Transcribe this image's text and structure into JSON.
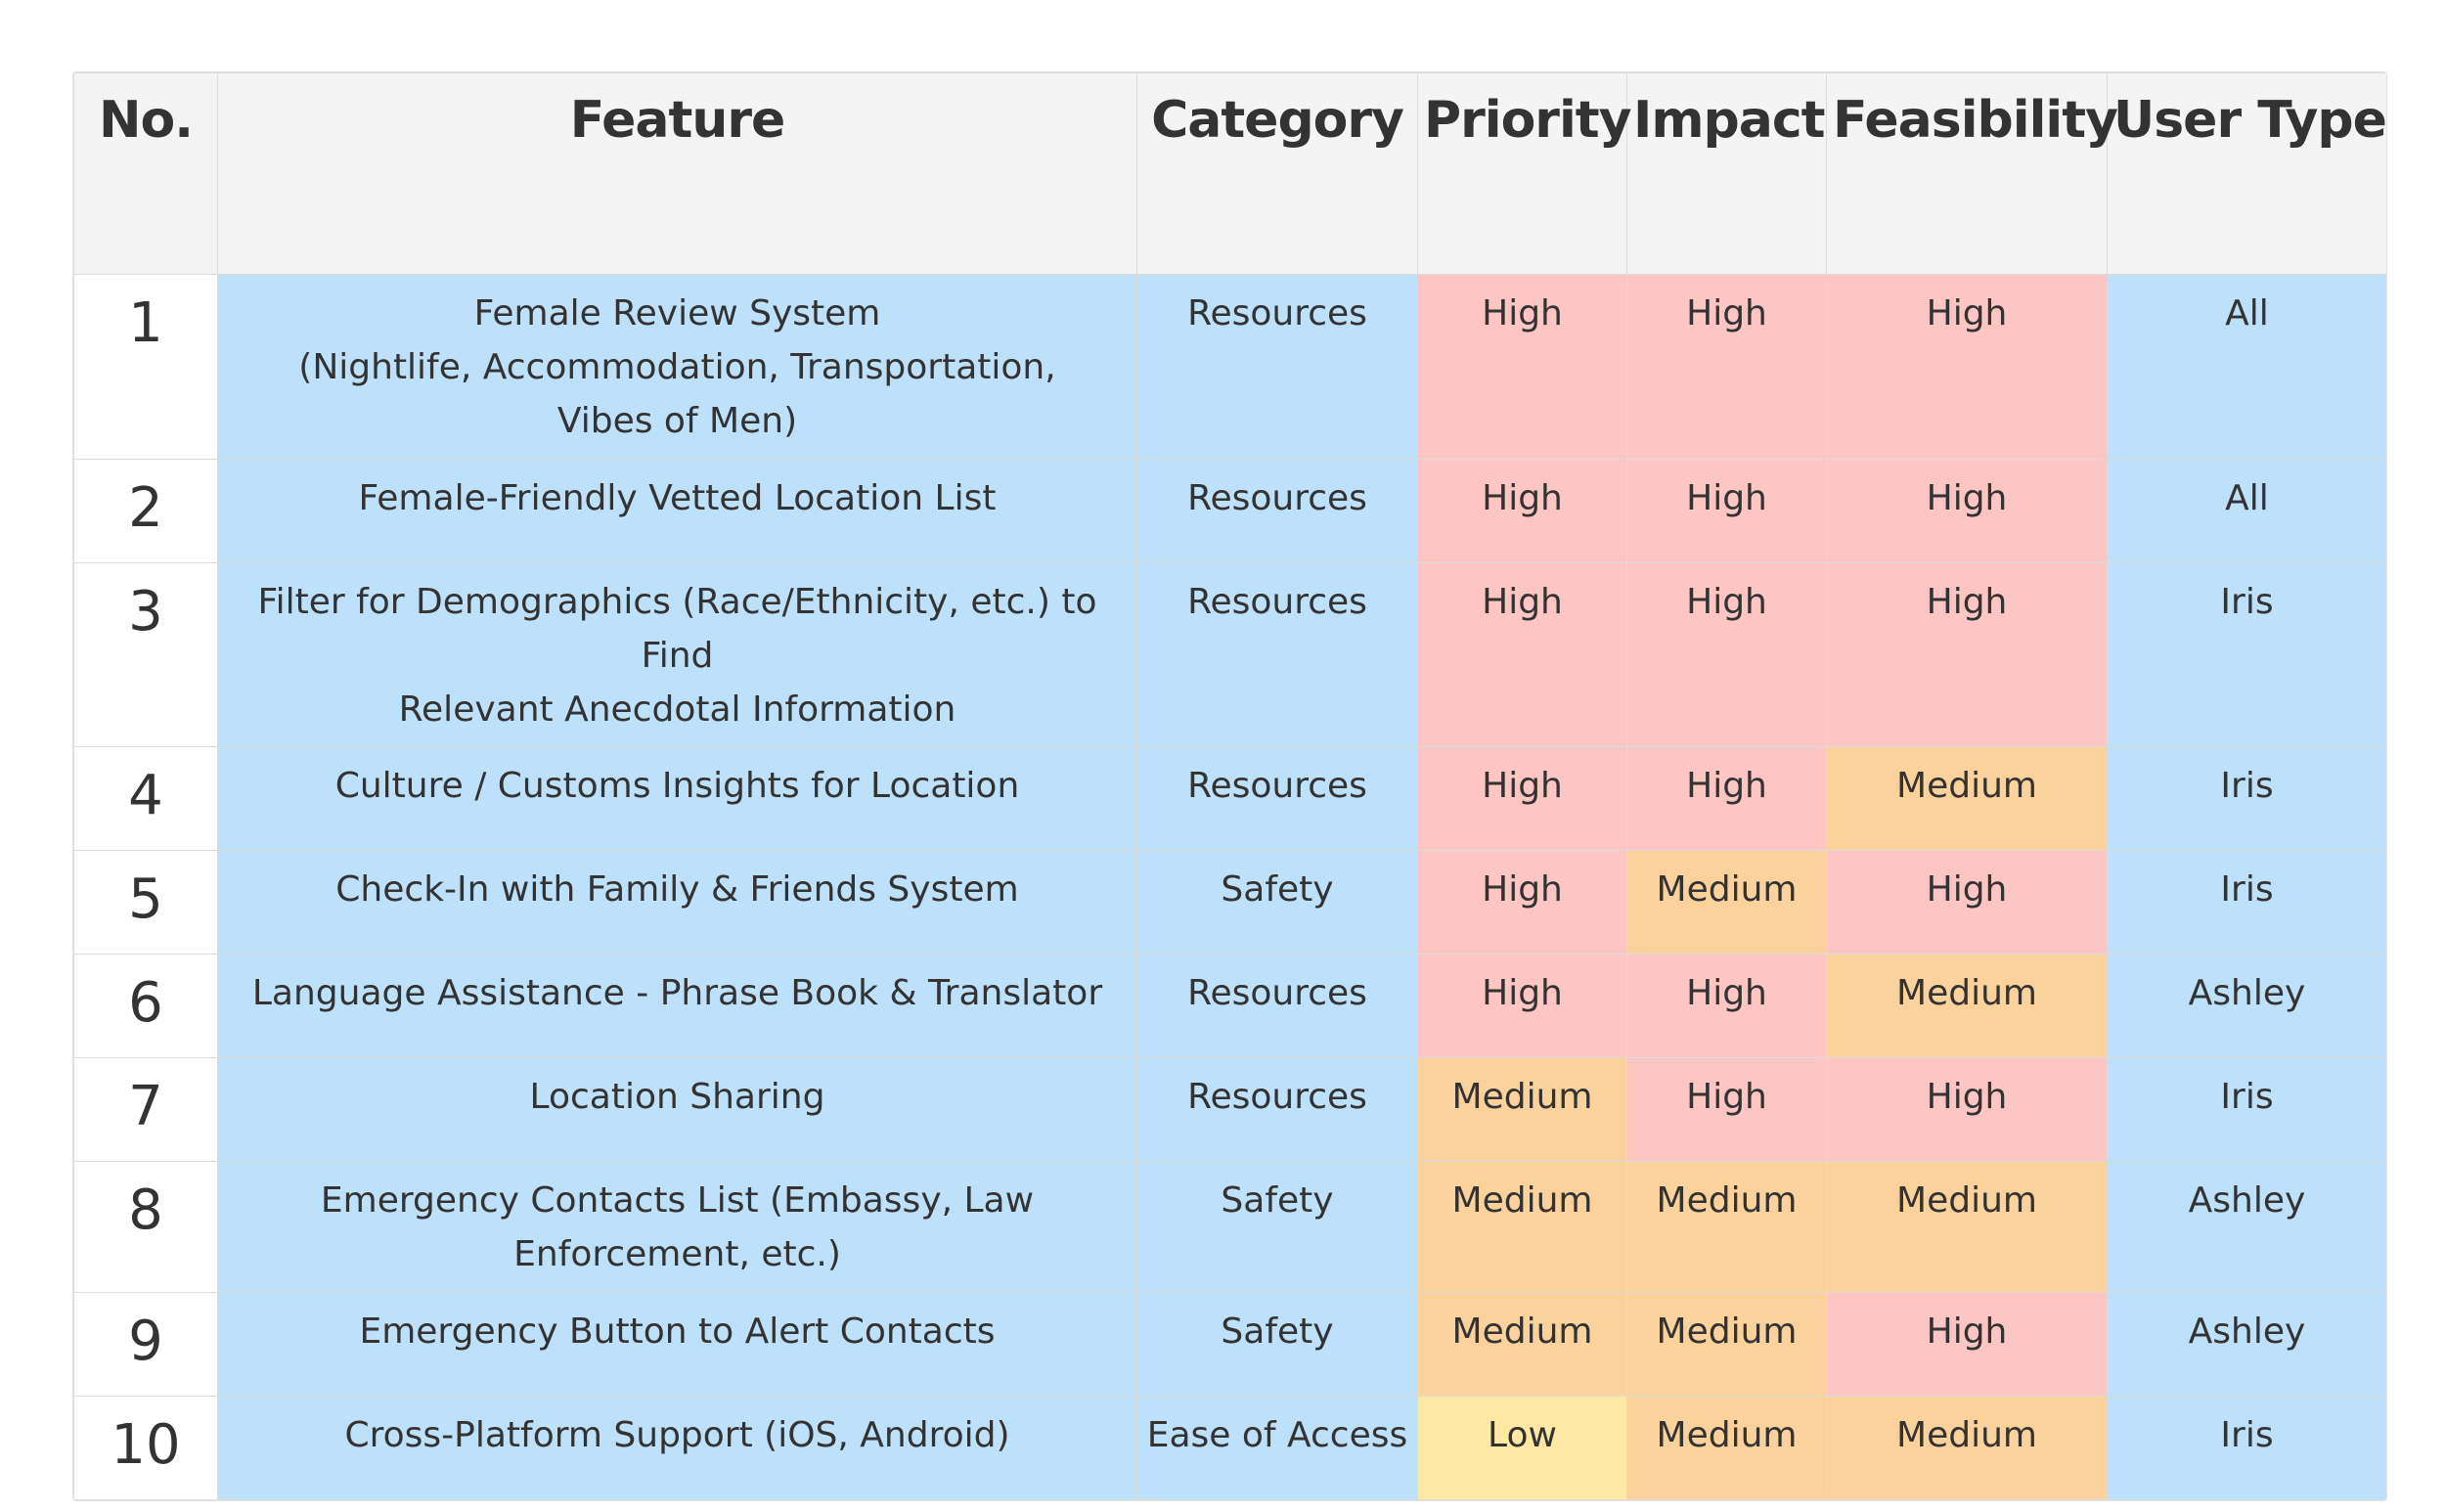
{
  "colors": {
    "blue": "#bde0fb",
    "high": "#fdc6c2",
    "medium": "#fbd19c",
    "low": "#ffe8a3",
    "header_bg": "#f4f4f4"
  },
  "headers": [
    "No.",
    "Feature",
    "Category",
    "Priority",
    "Impact",
    "Feasibility",
    "User Type"
  ],
  "rows": [
    {
      "no": "1",
      "feature": [
        "Female Review System",
        "(Nightlife, Accommodation, Transportation,",
        "Vibes of Men)"
      ],
      "category": "Resources",
      "priority": "High",
      "impact": "High",
      "feasibility": "High",
      "user_type": "All"
    },
    {
      "no": "2",
      "feature": [
        "Female-Friendly Vetted Location List"
      ],
      "category": "Resources",
      "priority": "High",
      "impact": "High",
      "feasibility": "High",
      "user_type": "All"
    },
    {
      "no": "3",
      "feature": [
        "Filter for Demographics (Race/Ethnicity, etc.) to Find",
        "Relevant Anecdotal Information"
      ],
      "category": "Resources",
      "priority": "High",
      "impact": "High",
      "feasibility": "High",
      "user_type": "Iris"
    },
    {
      "no": "4",
      "feature": [
        "Culture / Customs Insights for Location"
      ],
      "category": "Resources",
      "priority": "High",
      "impact": "High",
      "feasibility": "Medium",
      "user_type": "Iris"
    },
    {
      "no": "5",
      "feature": [
        "Check-In with Family & Friends System"
      ],
      "category": "Safety",
      "priority": "High",
      "impact": "Medium",
      "feasibility": "High",
      "user_type": "Iris"
    },
    {
      "no": "6",
      "feature": [
        "Language Assistance - Phrase Book & Translator"
      ],
      "category": "Resources",
      "priority": "High",
      "impact": "High",
      "feasibility": "Medium",
      "user_type": "Ashley"
    },
    {
      "no": "7",
      "feature": [
        "Location Sharing"
      ],
      "category": "Resources",
      "priority": "Medium",
      "impact": "High",
      "feasibility": "High",
      "user_type": "Iris"
    },
    {
      "no": "8",
      "feature": [
        "Emergency Contacts List (Embassy, Law",
        "Enforcement, etc.)"
      ],
      "category": "Safety",
      "priority": "Medium",
      "impact": "Medium",
      "feasibility": "Medium",
      "user_type": "Ashley"
    },
    {
      "no": "9",
      "feature": [
        "Emergency Button to Alert Contacts"
      ],
      "category": "Safety",
      "priority": "Medium",
      "impact": "Medium",
      "feasibility": "High",
      "user_type": "Ashley"
    },
    {
      "no": "10",
      "feature": [
        "Cross-Platform Support (iOS, Android)"
      ],
      "category": "Ease of Access",
      "priority": "Low",
      "impact": "Medium",
      "feasibility": "Medium",
      "user_type": "Iris"
    }
  ]
}
